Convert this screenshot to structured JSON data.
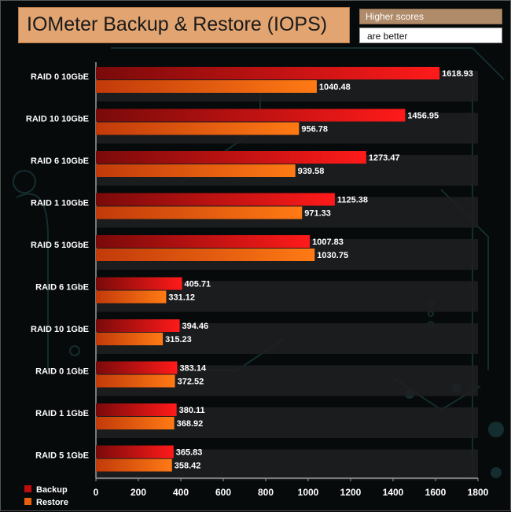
{
  "title": "IOMeter Backup & Restore (IOPS)",
  "note": {
    "line1": "Higher scores",
    "line2": "are better"
  },
  "colors": {
    "backup": "#e81010",
    "restore": "#f06810",
    "background": "#070a0b",
    "band": "#1e2022"
  },
  "chart_data": {
    "type": "bar",
    "orientation": "horizontal",
    "title": "IOMeter Backup & Restore (IOPS)",
    "categories": [
      "RAID 0 10GbE",
      "RAID 10 10GbE",
      "RAID 6 10GbE",
      "RAID 1 10GbE",
      "RAID 5 10GbE",
      "RAID 6 1GbE",
      "RAID 10 1GbE",
      "RAID 0 1GbE",
      "RAID 1 1GbE",
      "RAID 5 1GbE"
    ],
    "series": [
      {
        "name": "Backup",
        "values": [
          1618.93,
          1456.95,
          1273.47,
          1125.38,
          1007.83,
          405.71,
          394.46,
          383.14,
          380.11,
          365.83
        ]
      },
      {
        "name": "Restore",
        "values": [
          1040.48,
          956.78,
          939.58,
          971.33,
          1030.75,
          331.12,
          315.23,
          372.52,
          368.92,
          358.42
        ]
      }
    ],
    "xlim": [
      0,
      1800
    ],
    "xticks": [
      "0",
      "200",
      "400",
      "600",
      "800",
      "1000",
      "1200",
      "1400",
      "1600",
      "1800"
    ],
    "legend_position": "bottom-left",
    "grid": false
  }
}
